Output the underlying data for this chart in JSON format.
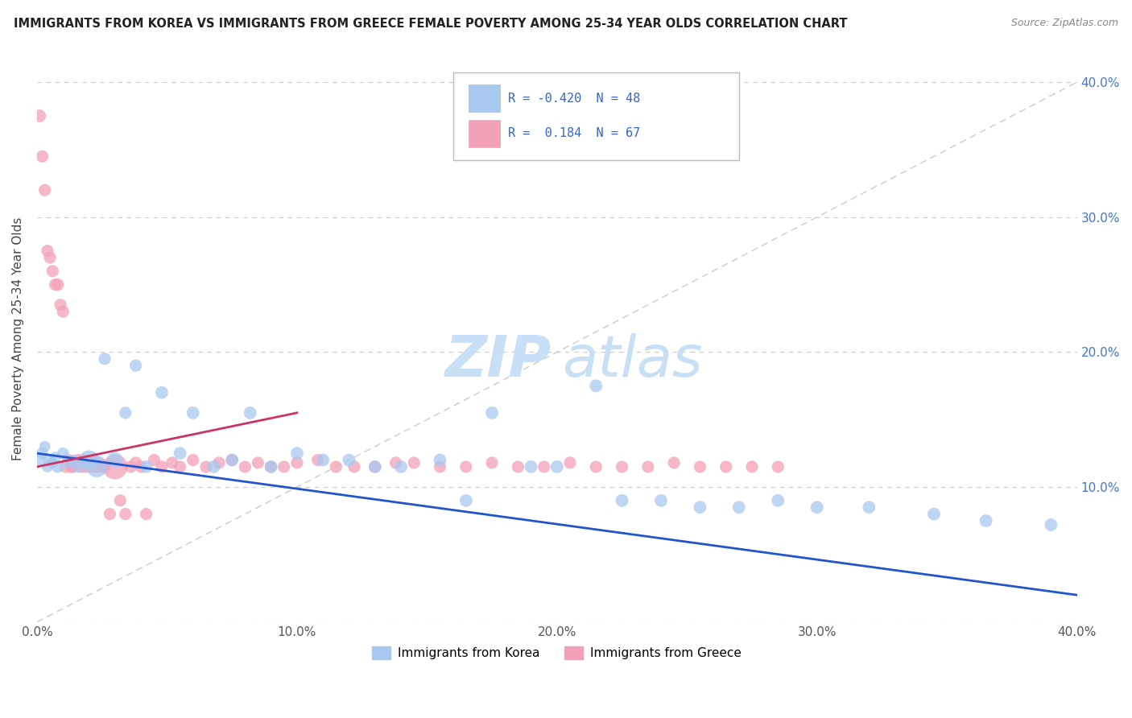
{
  "title": "IMMIGRANTS FROM KOREA VS IMMIGRANTS FROM GREECE FEMALE POVERTY AMONG 25-34 YEAR OLDS CORRELATION CHART",
  "source": "Source: ZipAtlas.com",
  "ylabel": "Female Poverty Among 25-34 Year Olds",
  "xlim": [
    0.0,
    0.4
  ],
  "ylim": [
    0.0,
    0.42
  ],
  "korea_R": -0.42,
  "korea_N": 48,
  "greece_R": 0.184,
  "greece_N": 67,
  "korea_color": "#a8c8f0",
  "greece_color": "#f4a0b8",
  "korea_line_color": "#2255cc",
  "greece_line_color": "#cc3366",
  "korea_x": [
    0.001,
    0.002,
    0.003,
    0.004,
    0.005,
    0.006,
    0.007,
    0.008,
    0.01,
    0.012,
    0.014,
    0.016,
    0.018,
    0.02,
    0.023,
    0.026,
    0.03,
    0.034,
    0.038,
    0.042,
    0.048,
    0.055,
    0.06,
    0.068,
    0.075,
    0.082,
    0.09,
    0.1,
    0.11,
    0.12,
    0.13,
    0.14,
    0.155,
    0.165,
    0.175,
    0.19,
    0.2,
    0.215,
    0.225,
    0.24,
    0.255,
    0.27,
    0.285,
    0.3,
    0.32,
    0.345,
    0.365,
    0.39
  ],
  "korea_y": [
    0.12,
    0.125,
    0.13,
    0.115,
    0.12,
    0.118,
    0.122,
    0.115,
    0.125,
    0.118,
    0.12,
    0.115,
    0.118,
    0.12,
    0.115,
    0.195,
    0.12,
    0.155,
    0.19,
    0.115,
    0.17,
    0.125,
    0.155,
    0.115,
    0.12,
    0.155,
    0.115,
    0.125,
    0.12,
    0.12,
    0.115,
    0.115,
    0.12,
    0.09,
    0.155,
    0.115,
    0.115,
    0.175,
    0.09,
    0.09,
    0.085,
    0.085,
    0.09,
    0.085,
    0.085,
    0.08,
    0.075,
    0.072
  ],
  "korea_sizes": [
    120,
    110,
    100,
    100,
    110,
    100,
    100,
    120,
    110,
    100,
    100,
    110,
    100,
    300,
    350,
    120,
    200,
    120,
    120,
    130,
    130,
    130,
    130,
    130,
    130,
    130,
    130,
    130,
    130,
    130,
    130,
    130,
    130,
    130,
    130,
    130,
    130,
    130,
    130,
    130,
    130,
    130,
    130,
    130,
    130,
    130,
    130,
    130
  ],
  "greece_x": [
    0.001,
    0.002,
    0.003,
    0.004,
    0.005,
    0.006,
    0.007,
    0.008,
    0.009,
    0.01,
    0.011,
    0.012,
    0.013,
    0.014,
    0.015,
    0.016,
    0.017,
    0.018,
    0.019,
    0.02,
    0.021,
    0.022,
    0.023,
    0.024,
    0.025,
    0.026,
    0.028,
    0.03,
    0.032,
    0.034,
    0.036,
    0.038,
    0.04,
    0.042,
    0.045,
    0.048,
    0.052,
    0.055,
    0.06,
    0.065,
    0.07,
    0.075,
    0.08,
    0.085,
    0.09,
    0.095,
    0.1,
    0.108,
    0.115,
    0.122,
    0.13,
    0.138,
    0.145,
    0.155,
    0.165,
    0.175,
    0.185,
    0.195,
    0.205,
    0.215,
    0.225,
    0.235,
    0.245,
    0.255,
    0.265,
    0.275,
    0.285
  ],
  "greece_y": [
    0.375,
    0.345,
    0.32,
    0.275,
    0.27,
    0.26,
    0.25,
    0.25,
    0.235,
    0.23,
    0.115,
    0.12,
    0.115,
    0.115,
    0.118,
    0.12,
    0.115,
    0.12,
    0.115,
    0.118,
    0.115,
    0.12,
    0.115,
    0.118,
    0.115,
    0.115,
    0.08,
    0.115,
    0.09,
    0.08,
    0.115,
    0.118,
    0.115,
    0.08,
    0.12,
    0.115,
    0.118,
    0.115,
    0.12,
    0.115,
    0.118,
    0.12,
    0.115,
    0.118,
    0.115,
    0.115,
    0.118,
    0.12,
    0.115,
    0.115,
    0.115,
    0.118,
    0.118,
    0.115,
    0.115,
    0.118,
    0.115,
    0.115,
    0.118,
    0.115,
    0.115,
    0.115,
    0.118,
    0.115,
    0.115,
    0.115,
    0.115
  ],
  "greece_sizes": [
    130,
    120,
    120,
    120,
    120,
    120,
    120,
    120,
    120,
    120,
    120,
    120,
    120,
    120,
    120,
    120,
    120,
    120,
    120,
    120,
    120,
    120,
    120,
    120,
    120,
    120,
    120,
    500,
    120,
    120,
    120,
    120,
    120,
    120,
    120,
    120,
    120,
    120,
    120,
    120,
    120,
    120,
    120,
    120,
    120,
    120,
    120,
    120,
    120,
    120,
    120,
    120,
    120,
    120,
    120,
    120,
    120,
    120,
    120,
    120,
    120,
    120,
    120,
    120,
    120,
    120,
    120
  ]
}
